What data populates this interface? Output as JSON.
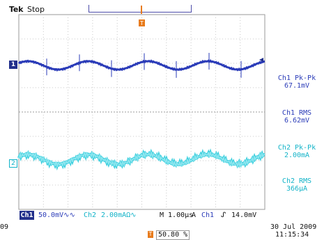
{
  "header": {
    "brand": "Tek",
    "acquisition_state": "Stop"
  },
  "channels": {
    "ch1": {
      "marker": "1",
      "color": "#2a3bb8"
    },
    "ch2": {
      "marker": "2",
      "color": "#12b3c8"
    }
  },
  "measurements": [
    {
      "label": "Ch1 Pk-Pk",
      "value": "67.1mV",
      "channel": "ch1"
    },
    {
      "label": "Ch1 RMS",
      "value": "6.62mV",
      "channel": "ch1"
    },
    {
      "label": "Ch2 Pk-Pk",
      "value": "2.00mA",
      "channel": "ch2"
    },
    {
      "label": "Ch2 RMS",
      "value": "366µA",
      "channel": "ch2"
    }
  ],
  "status_bar": {
    "ch1_tag": "Ch1",
    "ch1_scale": "50.0mV∿∿",
    "ch2_tag": "Ch2",
    "ch2_scale": "2.00mAΩ∿",
    "timebase": "M 1.00µs",
    "acq_mode": "A",
    "trigger_source": "Ch1",
    "trigger_slope": "ᔑ",
    "trigger_level": "14.0mV"
  },
  "trigger_position": {
    "icon": "T",
    "value": "50.80 %"
  },
  "datetime": {
    "date": "30 Jul  2009",
    "time": "11:15:34"
  },
  "left_partial": "09",
  "colors": {
    "grid": "#c8c8c8",
    "ch1_trace": "#2a3bb8",
    "ch2_trace": "#3fd0df",
    "trigger_marker": "#e87b1c"
  }
}
